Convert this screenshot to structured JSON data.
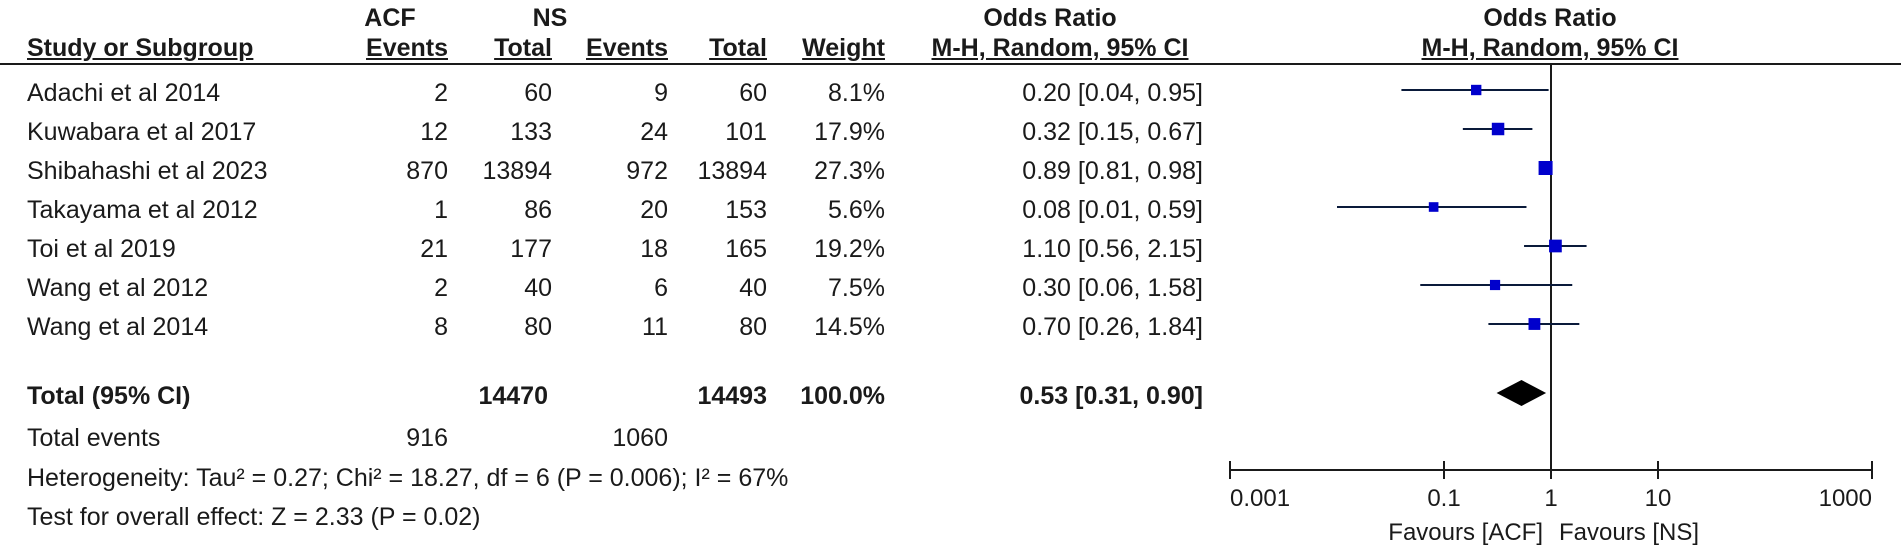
{
  "header": {
    "acf": "ACF",
    "ns": "NS",
    "or_header": "Odds Ratio",
    "or_plot_header": "Odds Ratio",
    "col_study": "Study or Subgroup",
    "col_acf_events": "Events",
    "col_acf_total": "Total",
    "col_ns_events": "Events",
    "col_ns_total": "Total",
    "col_weight": "Weight",
    "col_method": "M-H, Random, 95% CI",
    "col_plot_method": "M-H, Random, 95% CI"
  },
  "studies": [
    {
      "name": "Adachi et al 2014",
      "acf_events": "2",
      "acf_total": "60",
      "ns_events": "9",
      "ns_total": "60",
      "weight": "8.1%",
      "ci": "0.20 [0.04, 0.95]"
    },
    {
      "name": "Kuwabara et al 2017",
      "acf_events": "12",
      "acf_total": "133",
      "ns_events": "24",
      "ns_total": "101",
      "weight": "17.9%",
      "ci": "0.32 [0.15, 0.67]"
    },
    {
      "name": "Shibahashi et al 2023",
      "acf_events": "870",
      "acf_total": "13894",
      "ns_events": "972",
      "ns_total": "13894",
      "weight": "27.3%",
      "ci": "0.89 [0.81, 0.98]"
    },
    {
      "name": "Takayama et al 2012",
      "acf_events": "1",
      "acf_total": "86",
      "ns_events": "20",
      "ns_total": "153",
      "weight": "5.6%",
      "ci": "0.08 [0.01, 0.59]"
    },
    {
      "name": "Toi et al 2019",
      "acf_events": "21",
      "acf_total": "177",
      "ns_events": "18",
      "ns_total": "165",
      "weight": "19.2%",
      "ci": "1.10 [0.56, 2.15]"
    },
    {
      "name": "Wang et al 2012",
      "acf_events": "2",
      "acf_total": "40",
      "ns_events": "6",
      "ns_total": "40",
      "weight": "7.5%",
      "ci": "0.30 [0.06, 1.58]"
    },
    {
      "name": "Wang et al 2014",
      "acf_events": "8",
      "acf_total": "80",
      "ns_events": "11",
      "ns_total": "80",
      "weight": "14.5%",
      "ci": "0.70 [0.26, 1.84]"
    }
  ],
  "total": {
    "label": "Total (95% CI)",
    "acf_total": "14470",
    "ns_total": "14493",
    "weight": "100.0%",
    "ci": "0.53 [0.31, 0.90]"
  },
  "total_events": {
    "label": "Total events",
    "acf": "916",
    "ns": "1060"
  },
  "heterogeneity": "Heterogeneity: Tau² = 0.27; Chi² = 18.27, df = 6 (P = 0.006); I² = 67%",
  "overall_effect": "Test for overall effect: Z = 2.33 (P = 0.02)",
  "chart_data": {
    "type": "forest",
    "scale": "log",
    "xlim": [
      0.001,
      1000
    ],
    "ticks": [
      {
        "value": 0.001,
        "label": "0.001"
      },
      {
        "value": 0.1,
        "label": "0.1"
      },
      {
        "value": 1,
        "label": "1"
      },
      {
        "value": 10,
        "label": "10"
      },
      {
        "value": 1000,
        "label": "1000"
      }
    ],
    "reference_line": 1,
    "favours_left": "Favours [ACF]",
    "favours_right": "Favours [NS]",
    "marker_color": "#0000cc",
    "diamond_color": "#000000",
    "studies": [
      {
        "name": "Adachi et al 2014",
        "or": 0.2,
        "lower": 0.04,
        "upper": 0.95,
        "weight": 8.1
      },
      {
        "name": "Kuwabara et al 2017",
        "or": 0.32,
        "lower": 0.15,
        "upper": 0.67,
        "weight": 17.9
      },
      {
        "name": "Shibahashi et al 2023",
        "or": 0.89,
        "lower": 0.81,
        "upper": 0.98,
        "weight": 27.3
      },
      {
        "name": "Takayama et al 2012",
        "or": 0.08,
        "lower": 0.01,
        "upper": 0.59,
        "weight": 5.6
      },
      {
        "name": "Toi et al 2019",
        "or": 1.1,
        "lower": 0.56,
        "upper": 2.15,
        "weight": 19.2
      },
      {
        "name": "Wang et al 2012",
        "or": 0.3,
        "lower": 0.06,
        "upper": 1.58,
        "weight": 7.5
      },
      {
        "name": "Wang et al 2014",
        "or": 0.7,
        "lower": 0.26,
        "upper": 1.84,
        "weight": 14.5
      }
    ],
    "pooled": {
      "or": 0.53,
      "lower": 0.31,
      "upper": 0.9
    }
  }
}
